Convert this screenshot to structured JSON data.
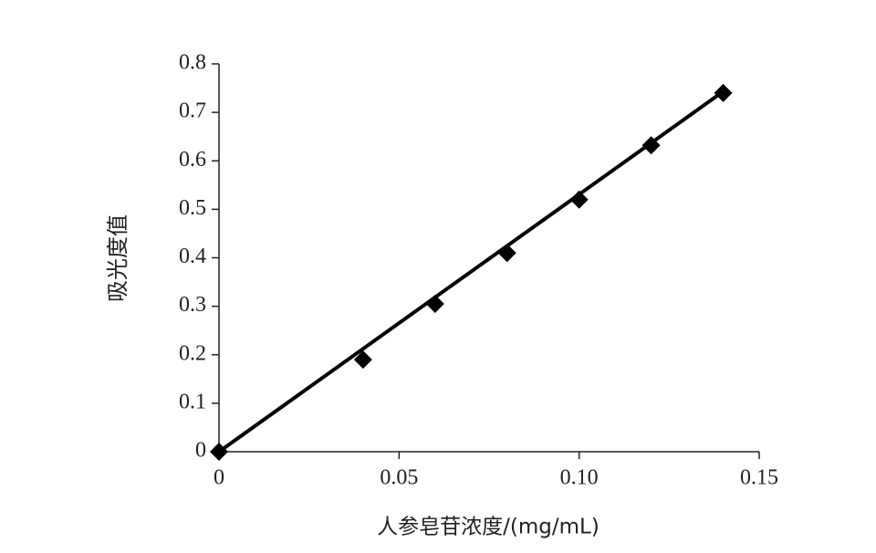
{
  "chart_data": {
    "type": "scatter",
    "x_label": "人参皂苷浓度/(mg/mL)",
    "y_label": "吸光度值",
    "series": [
      {
        "color": "#000000",
        "x": [
          0,
          0.04,
          0.06,
          0.08,
          0.1,
          0.12,
          0.14
        ],
        "values": [
          0,
          0.19,
          0.305,
          0.41,
          0.52,
          0.632,
          0.74
        ]
      }
    ],
    "trendline": {
      "color": "#000000",
      "x": [
        0,
        0.14
      ],
      "values": [
        0,
        0.743
      ]
    },
    "xlim": [
      0,
      0.15
    ],
    "xticks": [
      0,
      0.05,
      {
        "value": 0.1,
        "label": "0.10"
      },
      0.15
    ],
    "ylim": [
      0,
      0.8
    ],
    "yticks": [
      0,
      0.1,
      0.2,
      0.3,
      0.4,
      0.5,
      0.6,
      0.7,
      0.8
    ]
  }
}
